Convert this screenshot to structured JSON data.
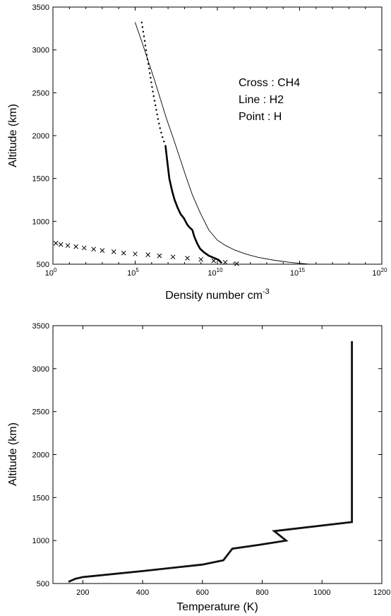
{
  "chart_data": [
    {
      "type": "scatter",
      "xlabel": "Density number cm",
      "xlabel_sup": "-3",
      "ylabel": "Altitude (km)",
      "xscale": "log",
      "xlim": [
        1,
        1e+20
      ],
      "ylim": [
        500,
        3500
      ],
      "xticks": [
        {
          "value": 1,
          "base": "10",
          "exp": "0"
        },
        {
          "value": 100000.0,
          "base": "10",
          "exp": "5"
        },
        {
          "value": 10000000000.0,
          "base": "10",
          "exp": "10"
        },
        {
          "value": 1000000000000000.0,
          "base": "10",
          "exp": "15"
        },
        {
          "value": 1e+20,
          "base": "10",
          "exp": "20"
        }
      ],
      "yticks": [
        500,
        1000,
        1500,
        2000,
        2500,
        3000,
        3500
      ],
      "legend": [
        "Cross : CH4",
        "Line : H2",
        "Point : H"
      ],
      "legend_position": "upper-right",
      "series": [
        {
          "name": "CH4",
          "style": "cross",
          "x": [
            1.5,
            3,
            8,
            25,
            80,
            300,
            1000,
            5000,
            20000,
            100000,
            600000,
            3000000,
            20000000,
            150000000,
            1000000000,
            6000000000,
            30000000000,
            150000000000
          ],
          "y": [
            745,
            730,
            718,
            705,
            690,
            675,
            660,
            645,
            630,
            620,
            610,
            598,
            585,
            570,
            555,
            540,
            522,
            505
          ]
        },
        {
          "name": "H2",
          "style": "thin-line",
          "x": [
            100000,
            250000,
            600000,
            1500000,
            3500000,
            8000000,
            20000000,
            50000000,
            120000000,
            300000000,
            900000000,
            3000000000,
            10000000000,
            30000000000,
            100000000000,
            500000000000,
            3000000000000,
            30000000000000,
            300000000000000,
            4000000000000000
          ],
          "y": [
            3320,
            3100,
            2880,
            2650,
            2420,
            2200,
            1980,
            1750,
            1530,
            1310,
            1100,
            900,
            780,
            720,
            670,
            620,
            580,
            545,
            520,
            500
          ]
        },
        {
          "name": "H",
          "style": "thick-line",
          "x": [
            7000000,
            9000000,
            12000000,
            18000000,
            25000000,
            40000000,
            60000000,
            90000000,
            150000000,
            200000000,
            300000000,
            400000000,
            600000000,
            900000000,
            1500000000,
            3000000000,
            6000000000,
            12000000000,
            17000000000
          ],
          "y": [
            1880,
            1700,
            1500,
            1350,
            1250,
            1150,
            1080,
            1040,
            960,
            930,
            900,
            820,
            740,
            680,
            640,
            600,
            575,
            550,
            520
          ]
        },
        {
          "name": "H",
          "style": "dotted",
          "x": [
            250000,
            350000,
            500000,
            750000,
            1100000,
            1600000,
            2400000,
            3600000,
            5000000,
            6500000
          ],
          "y": [
            3320,
            3150,
            2950,
            2750,
            2550,
            2380,
            2200,
            2050,
            1960,
            1900
          ]
        }
      ]
    },
    {
      "type": "line",
      "xlabel": "Temperature (K)",
      "ylabel": "Altitude (km)",
      "xlim": [
        100,
        1200
      ],
      "ylim": [
        500,
        3500
      ],
      "xticks": [
        200,
        400,
        600,
        800,
        1000,
        1200
      ],
      "yticks": [
        500,
        1000,
        1500,
        2000,
        2500,
        3000,
        3500
      ],
      "series": [
        {
          "x": [
            152,
            175,
            200,
            400,
            600,
            670,
            700,
            790,
            880,
            840,
            1100,
            1100
          ],
          "y": [
            520,
            555,
            575,
            645,
            720,
            770,
            905,
            950,
            1000,
            1110,
            1215,
            3320
          ]
        }
      ]
    }
  ]
}
